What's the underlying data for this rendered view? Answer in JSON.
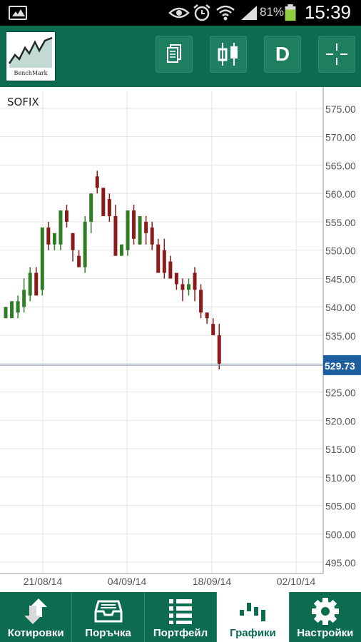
{
  "status_bar": {
    "battery": "81%",
    "time": "15:39"
  },
  "app": {
    "logo_text": "BenchMark"
  },
  "toolbar": {
    "period_label": "D"
  },
  "chart_data": {
    "type": "candlestick",
    "title": "SOFIX",
    "y_ticks": [
      "575.00",
      "570.00",
      "565.00",
      "560.00",
      "555.00",
      "550.00",
      "545.00",
      "540.00",
      "535.00",
      "530.00",
      "525.00",
      "520.00",
      "515.00",
      "510.00",
      "505.00",
      "500.00",
      "495.00"
    ],
    "x_ticks": [
      "21/08/14",
      "04/09/14",
      "18/09/14",
      "02/10/14"
    ],
    "ylim": [
      493,
      578
    ],
    "current_price": "529.73",
    "candles": [
      {
        "o": 538,
        "h": 540,
        "l": 538,
        "c": 540
      },
      {
        "o": 538,
        "h": 541,
        "l": 538,
        "c": 541
      },
      {
        "o": 539,
        "h": 542,
        "l": 538,
        "c": 541
      },
      {
        "o": 540,
        "h": 545,
        "l": 539,
        "c": 543
      },
      {
        "o": 542,
        "h": 547,
        "l": 541,
        "c": 546
      },
      {
        "o": 546,
        "h": 547,
        "l": 542,
        "c": 542
      },
      {
        "o": 543,
        "h": 554,
        "l": 542,
        "c": 554
      },
      {
        "o": 554,
        "h": 555,
        "l": 550,
        "c": 551
      },
      {
        "o": 551,
        "h": 553,
        "l": 550,
        "c": 553
      },
      {
        "o": 551,
        "h": 557,
        "l": 550,
        "c": 557
      },
      {
        "o": 557,
        "h": 558,
        "l": 554,
        "c": 555
      },
      {
        "o": 553,
        "h": 553,
        "l": 548,
        "c": 550
      },
      {
        "o": 549,
        "h": 550,
        "l": 547,
        "c": 547
      },
      {
        "o": 547,
        "h": 556,
        "l": 546,
        "c": 555
      },
      {
        "o": 555,
        "h": 560,
        "l": 553,
        "c": 560
      },
      {
        "o": 563,
        "h": 564,
        "l": 560,
        "c": 561
      },
      {
        "o": 561,
        "h": 561,
        "l": 556,
        "c": 556
      },
      {
        "o": 559,
        "h": 560,
        "l": 555,
        "c": 556
      },
      {
        "o": 556,
        "h": 558,
        "l": 549,
        "c": 549
      },
      {
        "o": 549,
        "h": 551,
        "l": 549,
        "c": 551
      },
      {
        "o": 550,
        "h": 557,
        "l": 549,
        "c": 557
      },
      {
        "o": 557,
        "h": 558,
        "l": 551,
        "c": 552
      },
      {
        "o": 551,
        "h": 556,
        "l": 551,
        "c": 556
      },
      {
        "o": 555,
        "h": 556,
        "l": 551,
        "c": 553
      },
      {
        "o": 554,
        "h": 555,
        "l": 550,
        "c": 551
      },
      {
        "o": 551,
        "h": 552,
        "l": 546,
        "c": 546
      },
      {
        "o": 550,
        "h": 552,
        "l": 545,
        "c": 546
      },
      {
        "o": 548,
        "h": 549,
        "l": 545,
        "c": 545
      },
      {
        "o": 546,
        "h": 546,
        "l": 543,
        "c": 544
      },
      {
        "o": 544,
        "h": 545,
        "l": 541,
        "c": 543
      },
      {
        "o": 543,
        "h": 545,
        "l": 542,
        "c": 544
      },
      {
        "o": 546,
        "h": 547,
        "l": 541,
        "c": 543
      },
      {
        "o": 543,
        "h": 544,
        "l": 538,
        "c": 539
      },
      {
        "o": 539,
        "h": 539,
        "l": 537,
        "c": 538
      },
      {
        "o": 537,
        "h": 538,
        "l": 535,
        "c": 535
      },
      {
        "o": 535,
        "h": 537,
        "l": 529,
        "c": 530
      }
    ]
  },
  "bottom_nav": [
    {
      "label": "Котировки",
      "icon": "up-down-arrows-icon"
    },
    {
      "label": "Поръчка",
      "icon": "inbox-tray-icon"
    },
    {
      "label": "Портфейл",
      "icon": "list-icon"
    },
    {
      "label": "Графики",
      "icon": "bar-chart-icon"
    },
    {
      "label": "Настройки",
      "icon": "gear-icon"
    }
  ]
}
